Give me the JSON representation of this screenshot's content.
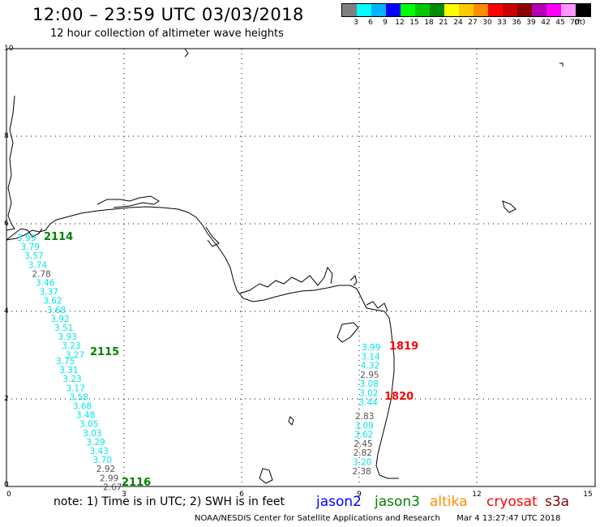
{
  "header": {
    "title": "12:00 – 23:59 UTC 03/03/2018",
    "subtitle": "12 hour collection of altimeter wave heights"
  },
  "scale": {
    "unit": "(ft)",
    "colors": [
      "#808080",
      "#00ffff",
      "#00b4ff",
      "#0000ff",
      "#00ff00",
      "#00c800",
      "#008c00",
      "#ffff00",
      "#ffc800",
      "#ff8c00",
      "#ff0000",
      "#c80000",
      "#8c0000",
      "#b400b4",
      "#ff00ff",
      "#ff96ff",
      "#000000"
    ],
    "labels": [
      "3",
      "6",
      "9",
      "12",
      "15",
      "18",
      "21",
      "24",
      "27",
      "30",
      "33",
      "36",
      "39",
      "42",
      "45",
      "70"
    ]
  },
  "axes": {
    "x_ticks": [
      "0",
      "3",
      "6",
      "9",
      "12",
      "15"
    ],
    "y_ticks": [
      "10",
      "8",
      "6",
      "4",
      "2",
      "0"
    ]
  },
  "passes": [
    {
      "label": "2114",
      "label_color": "#008000",
      "values": [
        {
          "v": "3.99",
          "c": "#00e5e5"
        },
        {
          "v": "3.79",
          "c": "#00e5e5"
        },
        {
          "v": "3.57",
          "c": "#00e5e5"
        },
        {
          "v": "3.74",
          "c": "#00e5e5"
        },
        {
          "v": "2.78",
          "c": "#555555"
        },
        {
          "v": "3.46",
          "c": "#00e5e5"
        },
        {
          "v": "3.37",
          "c": "#00e5e5"
        },
        {
          "v": "3.62",
          "c": "#00e5e5"
        },
        {
          "v": "3.68",
          "c": "#00e5e5"
        },
        {
          "v": "3.92",
          "c": "#00e5e5"
        },
        {
          "v": "3.51",
          "c": "#00e5e5"
        },
        {
          "v": "3.93",
          "c": "#00e5e5"
        },
        {
          "v": "3.23",
          "c": "#00e5e5"
        },
        {
          "v": "3.27",
          "c": "#00e5e5"
        }
      ]
    },
    {
      "label": "2115",
      "label_color": "#008000",
      "values": [
        {
          "v": "3.75",
          "c": "#00e5e5"
        },
        {
          "v": "3.31",
          "c": "#00e5e5"
        },
        {
          "v": "3.23",
          "c": "#00e5e5"
        },
        {
          "v": "3.17",
          "c": "#00e5e5"
        },
        {
          "v": "3.58",
          "c": "#00e5e5"
        },
        {
          "v": "3.68",
          "c": "#00e5e5"
        },
        {
          "v": "3.48",
          "c": "#00e5e5"
        },
        {
          "v": "3.05",
          "c": "#00e5e5"
        },
        {
          "v": "3.03",
          "c": "#00e5e5"
        },
        {
          "v": "3.29",
          "c": "#00e5e5"
        },
        {
          "v": "3.43",
          "c": "#00e5e5"
        },
        {
          "v": "3.70",
          "c": "#00e5e5"
        },
        {
          "v": "2.92",
          "c": "#555555"
        },
        {
          "v": "2.99",
          "c": "#555555"
        },
        {
          "v": "2.67",
          "c": "#555555"
        }
      ]
    },
    {
      "label": "2116",
      "label_color": "#008000",
      "values": []
    },
    {
      "label": "1819",
      "label_color": "#ff0000",
      "values": [
        {
          "v": "3.99",
          "c": "#00e5e5"
        },
        {
          "v": "3.14",
          "c": "#00e5e5"
        },
        {
          "v": "4.32",
          "c": "#00e5e5"
        },
        {
          "v": "2.95",
          "c": "#555555"
        },
        {
          "v": "3.08",
          "c": "#00e5e5"
        },
        {
          "v": "3.02",
          "c": "#00e5e5"
        },
        {
          "v": "3.44",
          "c": "#00e5e5"
        }
      ]
    },
    {
      "label": "1820",
      "label_color": "#ff0000",
      "values": [
        {
          "v": "2.83",
          "c": "#555555"
        },
        {
          "v": "3.09",
          "c": "#00e5e5"
        },
        {
          "v": "3.62",
          "c": "#00e5e5"
        },
        {
          "v": "2.45",
          "c": "#555555"
        },
        {
          "v": "2.82",
          "c": "#555555"
        },
        {
          "v": "3.20",
          "c": "#00e5e5"
        },
        {
          "v": "2.38",
          "c": "#555555"
        }
      ]
    }
  ],
  "footer": {
    "note": "note: 1) Time is in UTC; 2) SWH is in feet",
    "satellites": [
      {
        "name": "jason2",
        "color": "#0000ff"
      },
      {
        "name": "jason3",
        "color": "#008000"
      },
      {
        "name": "altika",
        "color": "#ff8c00"
      },
      {
        "name": "cryosat",
        "color": "#ff0000"
      },
      {
        "name": "s3a",
        "color": "#8b0000"
      }
    ],
    "credit": "NOAA/NESDIS Center for Satellite Applications and Research",
    "timestamp": "Mar  4 13:27:47 UTC 2018"
  }
}
